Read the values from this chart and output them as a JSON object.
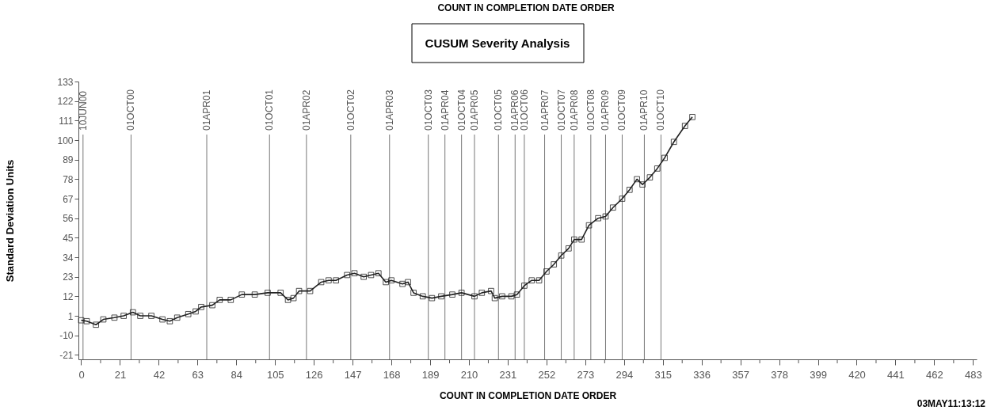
{
  "chart_data": {
    "type": "line",
    "title": "CUSUM Severity Analysis",
    "xlabel": "COUNT IN COMPLETION DATE ORDER",
    "ylabel": "Standard Deviation Units",
    "annotations": [
      "COUNT IN COMPLETION DATE ORDER",
      "03MAY11:13:12"
    ],
    "marker": "square",
    "line_style": "solid",
    "xlim": [
      -1.5,
      485
    ],
    "ylim": [
      -23.5,
      133
    ],
    "xticks": [
      0,
      {
        "value": 10.5,
        "label": null
      },
      21,
      {
        "value": 31.5,
        "label": null
      },
      42,
      {
        "value": 52.5,
        "label": null
      },
      63,
      {
        "value": 73.5,
        "label": null
      },
      84,
      {
        "value": 94.5,
        "label": null
      },
      105,
      {
        "value": 115.5,
        "label": null
      },
      126,
      {
        "value": 136.5,
        "label": null
      },
      147,
      {
        "value": 157.5,
        "label": null
      },
      168,
      {
        "value": 178.5,
        "label": null
      },
      189,
      {
        "value": 199.5,
        "label": null
      },
      210,
      {
        "value": 220.5,
        "label": null
      },
      231,
      {
        "value": 241.5,
        "label": null
      },
      252,
      {
        "value": 262.5,
        "label": null
      },
      273,
      {
        "value": 283.5,
        "label": null
      },
      294,
      {
        "value": 304.5,
        "label": null
      },
      315,
      {
        "value": 325.5,
        "label": null
      },
      336,
      {
        "value": 346.5,
        "label": null
      },
      357,
      {
        "value": 367.5,
        "label": null
      },
      378,
      {
        "value": 388.5,
        "label": null
      },
      399,
      {
        "value": 409.5,
        "label": null
      },
      420,
      {
        "value": 430.5,
        "label": null
      },
      441,
      {
        "value": 451.5,
        "label": null
      },
      462,
      {
        "value": 472.5,
        "label": null
      },
      483
    ],
    "yticks": [
      -21,
      -10,
      1,
      12,
      23,
      34,
      45,
      56,
      67,
      78,
      89,
      100,
      111,
      122,
      133
    ],
    "ref_lines": [
      {
        "axis": "x",
        "value": 1,
        "label": "10JUN00"
      },
      {
        "axis": "x",
        "value": 27,
        "label": "01OCT00"
      },
      {
        "axis": "x",
        "value": 68,
        "label": "01APR01"
      },
      {
        "axis": "x",
        "value": 102,
        "label": "01OCT01"
      },
      {
        "axis": "x",
        "value": 122,
        "label": "01APR02"
      },
      {
        "axis": "x",
        "value": 146,
        "label": "01OCT02"
      },
      {
        "axis": "x",
        "value": 167,
        "label": "01APR03"
      },
      {
        "axis": "x",
        "value": 188,
        "label": "01OCT03"
      },
      {
        "axis": "x",
        "value": 197,
        "label": "01APR04"
      },
      {
        "axis": "x",
        "value": 206,
        "label": "01OCT04"
      },
      {
        "axis": "x",
        "value": 213,
        "label": "01APR05"
      },
      {
        "axis": "x",
        "value": 226,
        "label": "01OCT05"
      },
      {
        "axis": "x",
        "value": 235,
        "label": "01APR06"
      },
      {
        "axis": "x",
        "value": 240,
        "label": "01OCT06"
      },
      {
        "axis": "x",
        "value": 251,
        "label": "01APR07"
      },
      {
        "axis": "x",
        "value": 260,
        "label": "01OCT07"
      },
      {
        "axis": "x",
        "value": 267,
        "label": "01APR08"
      },
      {
        "axis": "x",
        "value": 276,
        "label": "01OCT08"
      },
      {
        "axis": "x",
        "value": 284,
        "label": "01APR09"
      },
      {
        "axis": "x",
        "value": 293,
        "label": "01OCT09"
      },
      {
        "axis": "x",
        "value": 305,
        "label": "01APR10"
      },
      {
        "axis": "x",
        "value": 314,
        "label": "01OCT10"
      }
    ],
    "series": [
      {
        "color": "#222222",
        "x": [
          0,
          3,
          8,
          12,
          18,
          23,
          28,
          32,
          38,
          44,
          48,
          52,
          58,
          62,
          65,
          71,
          75,
          81,
          87,
          94,
          101,
          108,
          112,
          115,
          118,
          124,
          130,
          134,
          138,
          144,
          148,
          153,
          157,
          161,
          165,
          168,
          174,
          177,
          180,
          185,
          190,
          195,
          201,
          206,
          213,
          217,
          222,
          224,
          228,
          233,
          236,
          240,
          244,
          248,
          252,
          256,
          260,
          264,
          267,
          271,
          275,
          280,
          284,
          288,
          293,
          297,
          301,
          304,
          308,
          312,
          316,
          321,
          327,
          331
        ],
        "values": [
          -1.5,
          -2,
          -4,
          -1,
          0,
          1,
          3,
          1,
          1,
          -1,
          -2,
          0,
          2,
          3.5,
          6,
          7,
          10,
          10,
          13,
          13,
          14,
          14,
          10,
          11,
          15,
          15,
          20,
          21,
          21,
          24,
          25,
          23,
          24,
          25,
          20,
          21,
          19,
          20,
          14,
          12,
          11,
          12,
          13,
          14,
          12,
          14,
          15,
          11,
          12,
          12,
          13,
          18,
          21,
          21,
          26,
          30,
          35,
          39,
          44,
          44,
          52,
          56,
          57,
          62,
          67,
          72,
          78,
          75,
          79,
          84,
          90,
          99,
          108,
          113
        ]
      }
    ]
  }
}
